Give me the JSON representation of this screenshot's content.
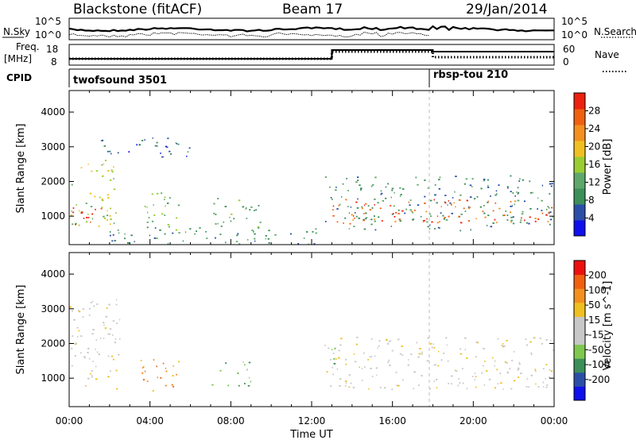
{
  "header": {
    "title": "Blackstone (fitACF)",
    "beam": "Beam 17",
    "date": "29/Jan/2014"
  },
  "nsky_panel": {
    "left_label": "N.Sky",
    "right_label": "N.Search",
    "ticks": [
      "10^5",
      "10^0"
    ]
  },
  "freq_panel": {
    "left_label_1": "Freq.",
    "left_label_2": "[MHz]",
    "left_ticks": [
      "18",
      "8"
    ],
    "right_label": "Nave",
    "right_ticks": [
      "60",
      "0"
    ]
  },
  "cpid_panel": {
    "label": "CPID",
    "modes": [
      "twofsound 3501",
      "rbsp-tou 210"
    ]
  },
  "colors": {
    "power_bar": [
      "#1010ee",
      "#2b4fa8",
      "#3d8f5a",
      "#5ea86b",
      "#9acd32",
      "#f0c020",
      "#f39020",
      "#f06010",
      "#ee2010"
    ],
    "velocity_bar": [
      "#ee1010",
      "#f06010",
      "#f39020",
      "#f0c020",
      "#c8c8c8",
      "#c8c8c8",
      "#7ec850",
      "#3d8f5a",
      "#2b4fa8",
      "#1010ee"
    ]
  },
  "chart_data": [
    {
      "type": "heatmap",
      "name": "power",
      "ylabel": "Slant Range [km]",
      "yticks": [
        "1000",
        "2000",
        "3000",
        "4000"
      ],
      "colorbar_label": "Power [dB]",
      "colorbar_ticks": [
        "4",
        "8",
        "12",
        "16",
        "20",
        "24",
        "28"
      ],
      "x_ticks": [
        "00:00",
        "04:00",
        "08:00",
        "12:00",
        "16:00",
        "20:00",
        "00:00"
      ],
      "xlim_hours": [
        0,
        24
      ],
      "ylim_km": [
        180,
        4620
      ],
      "grid": false,
      "patches": [
        {
          "t0": 0.0,
          "t1": 2.3,
          "r0": 700,
          "r1": 2700,
          "c": 4
        },
        {
          "t0": 0.0,
          "t1": 1.8,
          "r0": 750,
          "r1": 1350,
          "c": 8
        },
        {
          "t0": 1.5,
          "t1": 6.0,
          "r0": 2700,
          "r1": 3300,
          "c": 1
        },
        {
          "t0": 3.6,
          "t1": 5.6,
          "r0": 600,
          "r1": 1700,
          "c": 3
        },
        {
          "t0": 7.0,
          "t1": 9.5,
          "r0": 700,
          "r1": 1600,
          "c": 3
        },
        {
          "t0": 2.0,
          "t1": 12.6,
          "r0": 200,
          "r1": 700,
          "c": 2
        },
        {
          "t0": 12.6,
          "t1": 24.0,
          "r0": 600,
          "r1": 2200,
          "c": 2
        },
        {
          "t0": 12.8,
          "t1": 24.0,
          "r0": 800,
          "r1": 1500,
          "c": 7
        }
      ]
    },
    {
      "type": "heatmap",
      "name": "velocity",
      "ylabel": "Slant Range [km]",
      "yticks": [
        "1000",
        "2000",
        "3000",
        "4000"
      ],
      "colorbar_label": "Velocity [m s^-1]",
      "colorbar_ticks": [
        "200",
        "100",
        "50",
        "15",
        "-15",
        "-50",
        "-100",
        "-200"
      ],
      "x_ticks": [
        "00:00",
        "04:00",
        "08:00",
        "12:00",
        "16:00",
        "20:00",
        "00:00"
      ],
      "xlabel": "Time UT",
      "xlim_hours": [
        0,
        24
      ],
      "ylim_km": [
        180,
        4620
      ],
      "grid": false,
      "patches": [
        {
          "t0": 0.0,
          "t1": 2.5,
          "r0": 700,
          "r1": 3300,
          "c": 4
        },
        {
          "t0": 3.5,
          "t1": 5.5,
          "r0": 600,
          "r1": 1600,
          "c": 2
        },
        {
          "t0": 7.0,
          "t1": 9.0,
          "r0": 800,
          "r1": 1500,
          "c": 6
        },
        {
          "t0": 12.6,
          "t1": 24.0,
          "r0": 700,
          "r1": 2200,
          "c": 4
        },
        {
          "t0": 12.8,
          "t1": 13.2,
          "r0": 1000,
          "r1": 2300,
          "c": 6
        }
      ]
    }
  ]
}
